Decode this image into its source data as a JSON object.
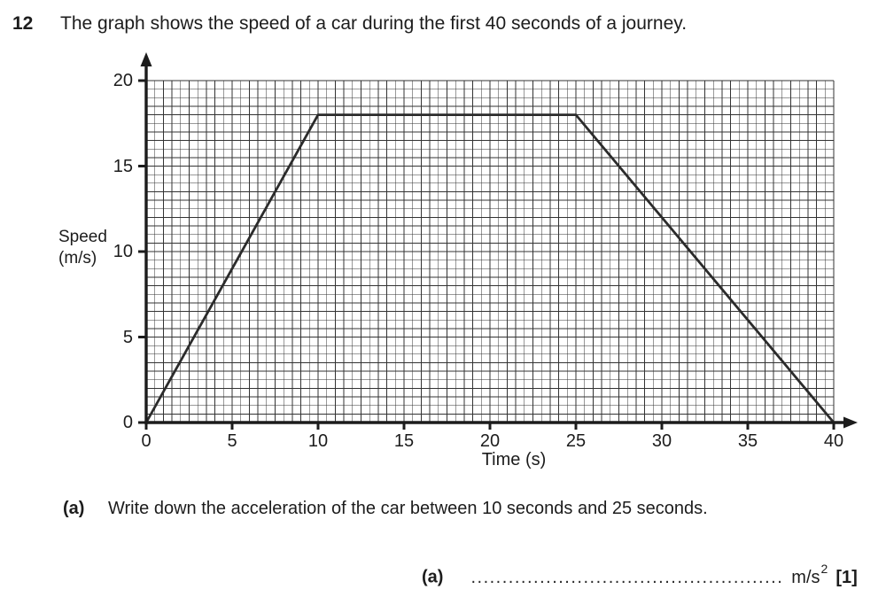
{
  "question": {
    "number": "12",
    "text": "The graph shows the speed of a car during the first 40 seconds of a journey."
  },
  "chart_data": {
    "type": "line",
    "title": "",
    "xlabel": "Time (s)",
    "ylabel": "Speed (m/s)",
    "ylabel_lines": [
      "Speed",
      "(m/s)"
    ],
    "xlim": [
      0,
      40
    ],
    "ylim": [
      0,
      20
    ],
    "x_ticks": [
      0,
      5,
      10,
      15,
      20,
      25,
      30,
      35,
      40
    ],
    "y_ticks": [
      0,
      5,
      10,
      15,
      20
    ],
    "minor_grid_step": 0.5,
    "grid": true,
    "legend": false,
    "series": [
      {
        "name": "car speed",
        "points": [
          [
            0,
            0
          ],
          [
            10,
            18
          ],
          [
            25,
            18
          ],
          [
            40,
            0
          ]
        ]
      }
    ]
  },
  "part_a": {
    "label": "(a)",
    "text": "Write down the acceleration of the car between 10 seconds and 25 seconds."
  },
  "answer_line": {
    "label": "(a)",
    "dots": "..................................................",
    "unit_base": "m/s",
    "unit_exponent": "2",
    "marks": "[1]"
  },
  "colors": {
    "ink": "#1c1c1c",
    "grid": "#333333",
    "curve": "#2b2b2b"
  }
}
